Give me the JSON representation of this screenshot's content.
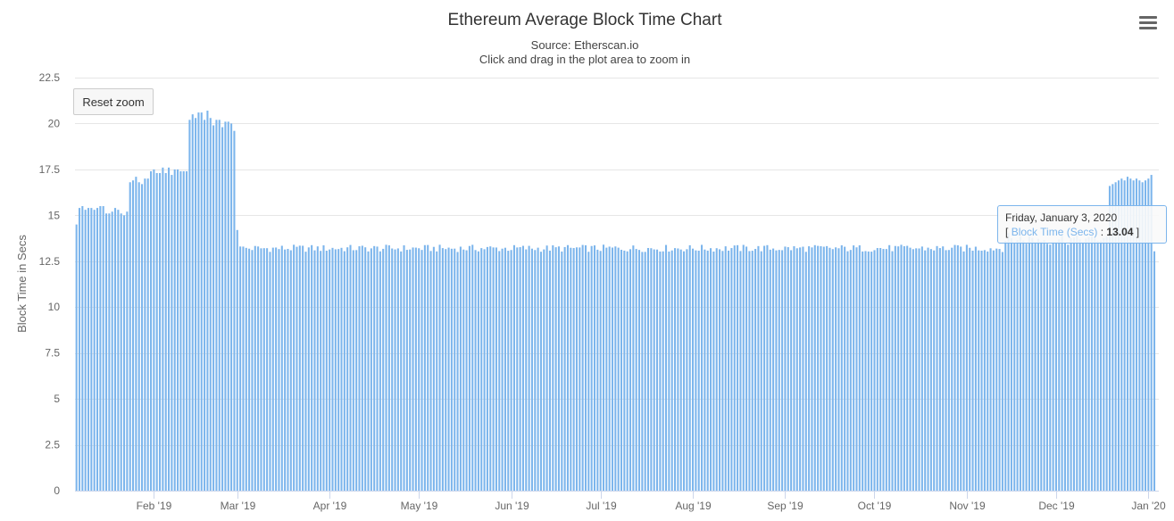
{
  "header": {
    "title": "Ethereum Average Block Time Chart",
    "source": "Source: Etherscan.io",
    "hint": "Click and drag in the plot area to zoom in"
  },
  "controls": {
    "reset_zoom_label": "Reset zoom",
    "menu_icon": "hamburger-menu-icon"
  },
  "tooltip": {
    "date": "Friday, January 3, 2020",
    "open_bracket": "[",
    "series_label": "Block Time (Secs)",
    "separator": ":",
    "value": "13.04",
    "close_bracket": "]"
  },
  "colors": {
    "bar": "#7cb5ec",
    "grid": "#e6e6e6",
    "axis_text": "#666666"
  },
  "chart_data": {
    "type": "bar",
    "title": "Ethereum Average Block Time Chart",
    "subtitle": "Source: Etherscan.io",
    "xlabel": "",
    "ylabel": "Block Time in Secs",
    "ylim": [
      0,
      22.5
    ],
    "yticks": [
      "0",
      "2.5",
      "5",
      "7.5",
      "10",
      "12.5",
      "15",
      "17.5",
      "20",
      "22.5"
    ],
    "xticks": [
      "Feb '19",
      "Mar '19",
      "Apr '19",
      "May '19",
      "Jun '19",
      "Jul '19",
      "Aug '19",
      "Sep '19",
      "Oct '19",
      "Nov '19",
      "Dec '19",
      "Jan '20"
    ],
    "x_start_date": "2019-01-06",
    "x_end_date": "2020-01-04",
    "grid": true,
    "legend": "none",
    "series": [
      {
        "name": "Block Time (Secs)",
        "segments": [
          {
            "from": "2019-01-06",
            "to": "2019-01-10",
            "values": [
              14.5,
              15.4,
              15.5,
              15.3,
              15.4
            ]
          },
          {
            "from": "2019-01-11",
            "to": "2019-01-20",
            "values": [
              15.4,
              15.3,
              15.4,
              15.5,
              15.5,
              15.1,
              15.1,
              15.2,
              15.4,
              15.3
            ]
          },
          {
            "from": "2019-01-21",
            "to": "2019-01-24",
            "values": [
              15.1,
              15.0,
              15.2,
              16.8
            ]
          },
          {
            "from": "2019-01-25",
            "to": "2019-02-06",
            "values": [
              16.9,
              17.1,
              16.8,
              16.7,
              17.0,
              17.0,
              17.4,
              17.5,
              17.3,
              17.3,
              17.6,
              17.3,
              17.6
            ]
          },
          {
            "from": "2019-02-07",
            "to": "2019-02-13",
            "values": [
              17.2,
              17.5,
              17.5,
              17.4,
              17.4,
              17.4,
              20.2
            ]
          },
          {
            "from": "2019-02-14",
            "to": "2019-02-27",
            "values": [
              20.5,
              20.3,
              20.6,
              20.6,
              20.2,
              20.7,
              20.3,
              19.9,
              20.2,
              20.2,
              19.8,
              20.1,
              20.1,
              20.0
            ]
          },
          {
            "from": "2019-02-28",
            "to": "2019-03-02",
            "values": [
              19.6,
              14.2,
              13.3
            ]
          },
          {
            "from": "2019-03-03",
            "to": "2019-11-13",
            "range": [
              13.0,
              13.4
            ],
            "typical": 13.2
          },
          {
            "from": "2019-11-14",
            "to": "2019-12-07",
            "range": [
              13.4,
              14.1
            ],
            "typical": 13.7
          },
          {
            "from": "2019-12-08",
            "to": "2019-12-18",
            "range": [
              13.5,
              13.9
            ],
            "typical": 13.7
          },
          {
            "from": "2019-12-19",
            "to": "2020-01-02",
            "values": [
              16.6,
              16.7,
              16.8,
              16.9,
              17.0,
              16.9,
              17.1,
              17.0,
              16.9,
              17.0,
              16.9,
              16.8,
              16.9,
              17.0,
              17.2
            ]
          },
          {
            "from": "2020-01-03",
            "to": "2020-01-03",
            "values": [
              13.04
            ]
          }
        ]
      }
    ]
  }
}
